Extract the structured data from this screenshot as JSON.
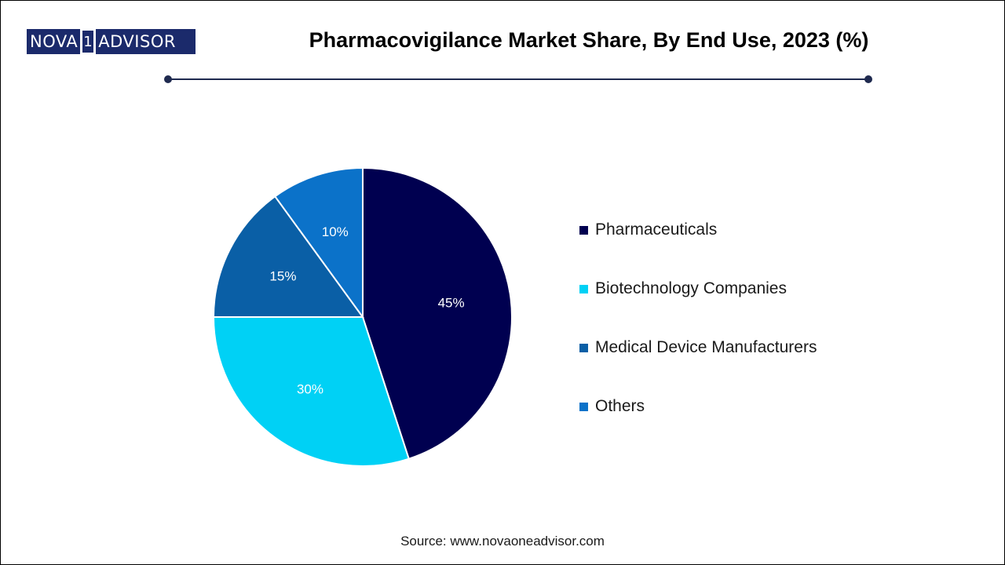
{
  "header": {
    "logo": {
      "left": "NOVA",
      "middle": "1",
      "right": "ADVISOR"
    },
    "title": "Pharmacovigilance Market Share, By End Use, 2023 (%)"
  },
  "chart_data": {
    "type": "pie",
    "title": "Pharmacovigilance Market Share, By End Use, 2023 (%)",
    "slices": [
      {
        "label": "Pharmaceuticals",
        "value": 45,
        "display": "45%",
        "color": "#000050"
      },
      {
        "label": "Biotechnology Companies",
        "value": 30,
        "display": "30%",
        "color": "#00d1f5"
      },
      {
        "label": "Medical Device Manufacturers",
        "value": 15,
        "display": "15%",
        "color": "#0a5fa6"
      },
      {
        "label": "Others",
        "value": 10,
        "display": "10%",
        "color": "#0b72c9"
      }
    ],
    "legend_position": "right"
  },
  "footer": {
    "source": "Source: www.novaoneadvisor.com"
  }
}
